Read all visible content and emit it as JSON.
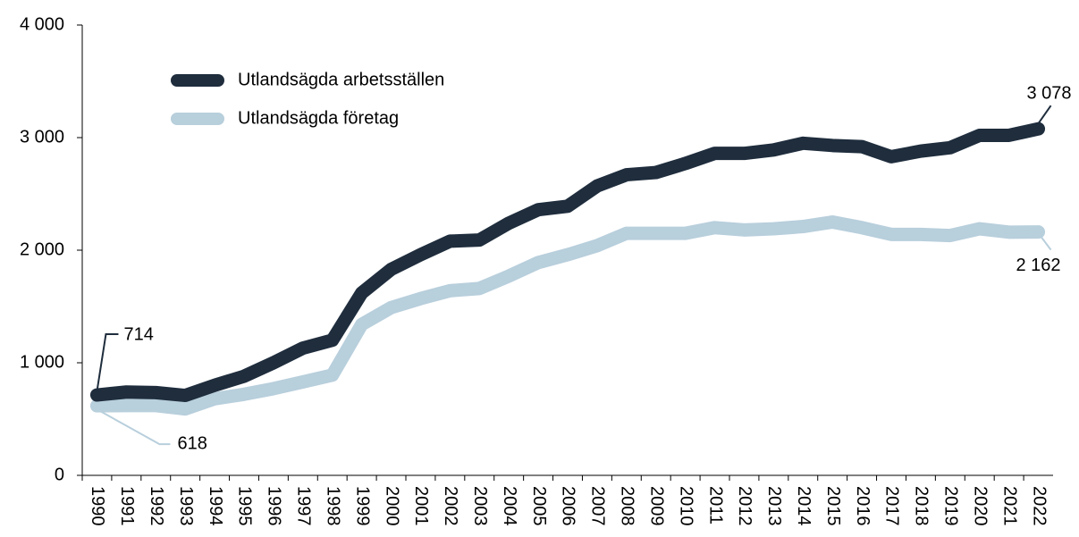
{
  "chart_data": {
    "type": "line",
    "categories": [
      "1990",
      "1991",
      "1992",
      "1993",
      "1994",
      "1995",
      "1996",
      "1997",
      "1998",
      "1999",
      "2000",
      "2001",
      "2002",
      "2003",
      "2004",
      "2005",
      "2006",
      "2007",
      "2008",
      "2009",
      "2010",
      "2011",
      "2012",
      "2013",
      "2014",
      "2015",
      "2016",
      "2017",
      "2018",
      "2019",
      "2020",
      "2021",
      "2022"
    ],
    "series": [
      {
        "name": "Utlandsägda arbetsställen",
        "color": "#1f2d3d",
        "values": [
          714,
          740,
          735,
          710,
          800,
          880,
          1000,
          1130,
          1200,
          1620,
          1830,
          1960,
          2080,
          2090,
          2240,
          2360,
          2390,
          2570,
          2670,
          2690,
          2770,
          2860,
          2860,
          2890,
          2950,
          2930,
          2920,
          2830,
          2880,
          2910,
          3020,
          3020,
          3078
        ],
        "value_labels": [
          "714",
          null,
          null,
          null,
          null,
          null,
          null,
          null,
          null,
          null,
          null,
          null,
          null,
          null,
          null,
          null,
          null,
          null,
          null,
          null,
          null,
          null,
          null,
          null,
          null,
          null,
          null,
          null,
          null,
          null,
          null,
          null,
          "3 078"
        ]
      },
      {
        "name": "Utlandsägda företag",
        "color": "#b8cfdc",
        "values": [
          618,
          620,
          620,
          590,
          680,
          720,
          770,
          830,
          890,
          1340,
          1490,
          1570,
          1640,
          1660,
          1770,
          1890,
          1960,
          2040,
          2150,
          2150,
          2150,
          2200,
          2180,
          2190,
          2210,
          2250,
          2200,
          2140,
          2140,
          2130,
          2190,
          2160,
          2162
        ],
        "value_labels": [
          "618",
          null,
          null,
          null,
          null,
          null,
          null,
          null,
          null,
          null,
          null,
          null,
          null,
          null,
          null,
          null,
          null,
          null,
          null,
          null,
          null,
          null,
          null,
          null,
          null,
          null,
          null,
          null,
          null,
          null,
          null,
          null,
          "2 162"
        ]
      }
    ],
    "ylim": [
      0,
      4000
    ],
    "yticks": [
      {
        "value": 0,
        "label": "0"
      },
      {
        "value": 1000,
        "label": "1 000"
      },
      {
        "value": 2000,
        "label": "2 000"
      },
      {
        "value": 3000,
        "label": "3 000"
      },
      {
        "value": 4000,
        "label": "4 000"
      }
    ],
    "grid": false,
    "legend": "upper left"
  }
}
